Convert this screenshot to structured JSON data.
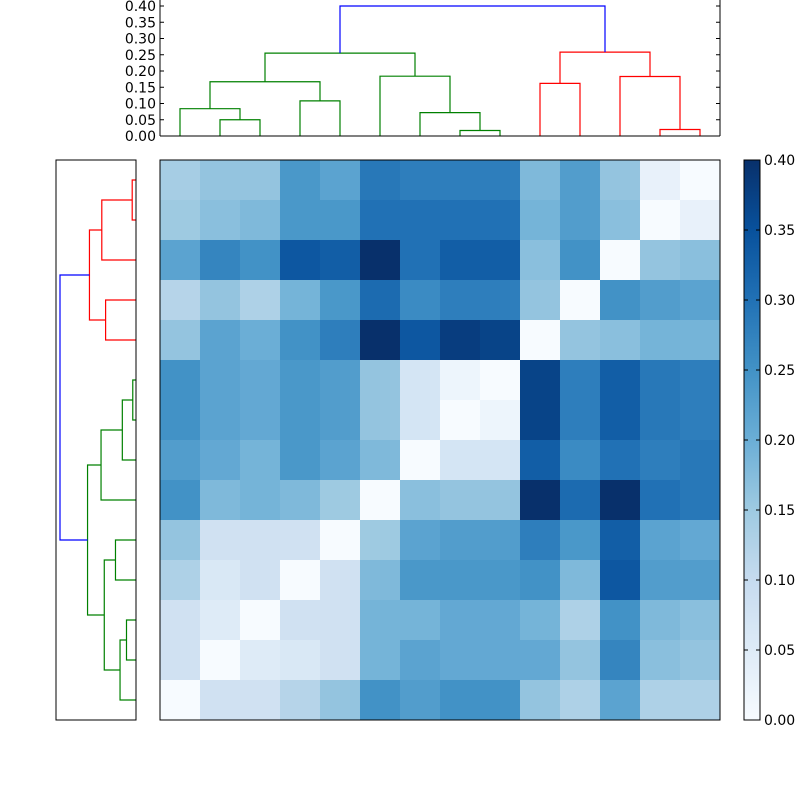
{
  "chart_data": {
    "type": "heatmap",
    "title": "",
    "xlabel": "",
    "ylabel": "",
    "colormap": "Blues",
    "colormap_stops": [
      "#f7fbff",
      "#deebf7",
      "#c6dbef",
      "#9ecae1",
      "#6baed6",
      "#4292c6",
      "#2171b5",
      "#08519c",
      "#08306b"
    ],
    "value_range": [
      0,
      0.4
    ],
    "matrix": [
      [
        0.14,
        0.16,
        0.16,
        0.24,
        0.22,
        0.29,
        0.28,
        0.28,
        0.28,
        0.18,
        0.23,
        0.16,
        0.03,
        0.0
      ],
      [
        0.15,
        0.17,
        0.18,
        0.24,
        0.24,
        0.3,
        0.3,
        0.3,
        0.3,
        0.19,
        0.23,
        0.17,
        0.0,
        0.03
      ],
      [
        0.22,
        0.27,
        0.25,
        0.34,
        0.33,
        0.4,
        0.3,
        0.33,
        0.33,
        0.17,
        0.25,
        0.0,
        0.16,
        0.17
      ],
      [
        0.12,
        0.16,
        0.13,
        0.19,
        0.24,
        0.31,
        0.26,
        0.28,
        0.28,
        0.16,
        0.0,
        0.25,
        0.23,
        0.22
      ],
      [
        0.16,
        0.22,
        0.2,
        0.25,
        0.28,
        0.4,
        0.34,
        0.38,
        0.37,
        0.0,
        0.16,
        0.17,
        0.19,
        0.19
      ],
      [
        0.25,
        0.22,
        0.21,
        0.24,
        0.23,
        0.16,
        0.07,
        0.02,
        0.0,
        0.37,
        0.28,
        0.33,
        0.29,
        0.28
      ],
      [
        0.25,
        0.22,
        0.21,
        0.24,
        0.23,
        0.16,
        0.07,
        0.0,
        0.02,
        0.37,
        0.28,
        0.33,
        0.29,
        0.28
      ],
      [
        0.23,
        0.21,
        0.19,
        0.24,
        0.22,
        0.18,
        0.0,
        0.07,
        0.07,
        0.33,
        0.26,
        0.3,
        0.28,
        0.29
      ],
      [
        0.25,
        0.18,
        0.19,
        0.18,
        0.15,
        0.0,
        0.17,
        0.16,
        0.16,
        0.4,
        0.31,
        0.4,
        0.3,
        0.29
      ],
      [
        0.16,
        0.08,
        0.08,
        0.08,
        0.0,
        0.15,
        0.22,
        0.23,
        0.23,
        0.28,
        0.24,
        0.33,
        0.22,
        0.21
      ],
      [
        0.13,
        0.06,
        0.08,
        0.0,
        0.08,
        0.18,
        0.24,
        0.24,
        0.24,
        0.25,
        0.18,
        0.34,
        0.23,
        0.23
      ],
      [
        0.08,
        0.05,
        0.0,
        0.08,
        0.08,
        0.19,
        0.19,
        0.21,
        0.21,
        0.19,
        0.13,
        0.25,
        0.18,
        0.17
      ],
      [
        0.08,
        0.0,
        0.05,
        0.06,
        0.08,
        0.19,
        0.22,
        0.21,
        0.21,
        0.21,
        0.16,
        0.27,
        0.17,
        0.16
      ],
      [
        0.0,
        0.08,
        0.08,
        0.12,
        0.16,
        0.25,
        0.23,
        0.25,
        0.25,
        0.16,
        0.13,
        0.22,
        0.13,
        0.13
      ]
    ],
    "colorbar": {
      "ticks": [
        "0.00",
        "0.05",
        "0.10",
        "0.15",
        "0.20",
        "0.25",
        "0.30",
        "0.35",
        "0.40"
      ]
    },
    "dendrogram_top": {
      "ylim": [
        0,
        0.4
      ],
      "y_ticks": [
        "0.00",
        "0.05",
        "0.10",
        "0.15",
        "0.20",
        "0.25",
        "0.30",
        "0.35",
        "0.40"
      ],
      "links": [
        {
          "x": [
            1,
            1,
            2,
            2
          ],
          "y": [
            0,
            0.05,
            0.05,
            0
          ],
          "color": "#008000"
        },
        {
          "x": [
            0,
            0,
            1.5,
            1.5
          ],
          "y": [
            0,
            0.084,
            0.084,
            0.05
          ],
          "color": "#008000"
        },
        {
          "x": [
            3,
            3,
            4,
            4
          ],
          "y": [
            0,
            0.108,
            0.108,
            0
          ],
          "color": "#008000"
        },
        {
          "x": [
            0.75,
            0.75,
            3.5,
            3.5
          ],
          "y": [
            0.084,
            0.167,
            0.167,
            0.108
          ],
          "color": "#008000"
        },
        {
          "x": [
            7,
            7,
            8,
            8
          ],
          "y": [
            0,
            0.017,
            0.017,
            0
          ],
          "color": "#008000"
        },
        {
          "x": [
            6,
            6,
            7.5,
            7.5
          ],
          "y": [
            0,
            0.072,
            0.072,
            0.017
          ],
          "color": "#008000"
        },
        {
          "x": [
            5,
            5,
            6.75,
            6.75
          ],
          "y": [
            0,
            0.184,
            0.184,
            0.072
          ],
          "color": "#008000"
        },
        {
          "x": [
            2.125,
            2.125,
            5.875,
            5.875
          ],
          "y": [
            0.167,
            0.255,
            0.255,
            0.184
          ],
          "color": "#008000"
        },
        {
          "x": [
            9,
            9,
            10,
            10
          ],
          "y": [
            0,
            0.162,
            0.162,
            0
          ],
          "color": "#ff0000"
        },
        {
          "x": [
            12,
            12,
            13,
            13
          ],
          "y": [
            0,
            0.02,
            0.02,
            0
          ],
          "color": "#ff0000"
        },
        {
          "x": [
            11,
            11,
            12.5,
            12.5
          ],
          "y": [
            0,
            0.183,
            0.183,
            0.02
          ],
          "color": "#ff0000"
        },
        {
          "x": [
            9.5,
            9.5,
            11.75,
            11.75
          ],
          "y": [
            0.162,
            0.258,
            0.258,
            0.183
          ],
          "color": "#ff0000"
        },
        {
          "x": [
            4,
            4,
            10.625,
            10.625
          ],
          "y": [
            0.255,
            0.4,
            0.4,
            0.258
          ],
          "color": "#0000ff"
        }
      ]
    },
    "dendrogram_left": {
      "links": [
        {
          "r": [
            0,
            0,
            1,
            1
          ],
          "d": [
            0,
            0.02,
            0.02,
            0
          ],
          "color": "#ff0000"
        },
        {
          "r": [
            0.5,
            0.5,
            2,
            2
          ],
          "d": [
            0.02,
            0.18,
            0.18,
            0
          ],
          "color": "#ff0000"
        },
        {
          "r": [
            3,
            3,
            4,
            4
          ],
          "d": [
            0,
            0.16,
            0.16,
            0
          ],
          "color": "#ff0000"
        },
        {
          "r": [
            1.25,
            1.25,
            3.5,
            3.5
          ],
          "d": [
            0.18,
            0.245,
            0.245,
            0.16
          ],
          "color": "#ff0000"
        },
        {
          "r": [
            5,
            5,
            6,
            6
          ],
          "d": [
            0,
            0.017,
            0.017,
            0
          ],
          "color": "#008000"
        },
        {
          "r": [
            5.5,
            5.5,
            7,
            7
          ],
          "d": [
            0.017,
            0.072,
            0.072,
            0
          ],
          "color": "#008000"
        },
        {
          "r": [
            6.25,
            6.25,
            8,
            8
          ],
          "d": [
            0.072,
            0.184,
            0.184,
            0
          ],
          "color": "#008000"
        },
        {
          "r": [
            9,
            9,
            10,
            10
          ],
          "d": [
            0,
            0.108,
            0.108,
            0
          ],
          "color": "#008000"
        },
        {
          "r": [
            11,
            11,
            12,
            12
          ],
          "d": [
            0,
            0.05,
            0.05,
            0
          ],
          "color": "#008000"
        },
        {
          "r": [
            11.5,
            11.5,
            13,
            13
          ],
          "d": [
            0.05,
            0.084,
            0.084,
            0
          ],
          "color": "#008000"
        },
        {
          "r": [
            9.5,
            9.5,
            12.25,
            12.25
          ],
          "d": [
            0.108,
            0.167,
            0.167,
            0.084
          ],
          "color": "#008000"
        },
        {
          "r": [
            7.125,
            7.125,
            10.875,
            10.875
          ],
          "d": [
            0.184,
            0.255,
            0.255,
            0.167
          ],
          "color": "#008000"
        },
        {
          "r": [
            2.375,
            2.375,
            9,
            9
          ],
          "d": [
            0.245,
            0.4,
            0.4,
            0.255
          ],
          "color": "#0000ff"
        }
      ]
    }
  }
}
